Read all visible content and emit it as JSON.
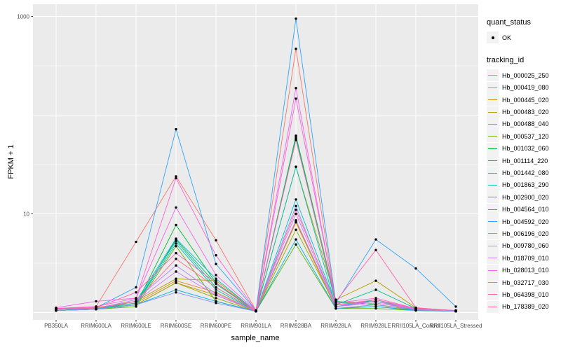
{
  "chart_data": {
    "type": "line",
    "title": "",
    "xlabel": "sample_name",
    "ylabel": "FPKM + 1",
    "y_scale": "log10",
    "ylim": [
      0.85,
      1100
    ],
    "grid": "on",
    "y_tick_labels": [
      {
        "value": 1000,
        "label": "1000"
      },
      {
        "value": 10,
        "label": "10"
      }
    ],
    "y_major_breaks": [
      1,
      10,
      100,
      1000
    ],
    "y_minor_breaks": [
      3.162,
      31.62,
      316.23
    ],
    "categories": [
      "PB350LA",
      "RRIM600LA",
      "RRIM600LE",
      "RRIM600SE",
      "RRIM600PE",
      "RRIM901LA",
      "RRIM928BA",
      "RRIM928LA",
      "RRIM928LE",
      "RRII105LA_Control",
      "RRII105LA_Stressed"
    ],
    "point_marker": {
      "shape": "circle",
      "color": "#000000",
      "meaning": "quant_status OK"
    },
    "series": [
      {
        "name": "Hb_000025_250",
        "color": "#F8766D",
        "values": [
          1.1,
          1.15,
          5.2,
          24,
          5.4,
          1.05,
          470,
          1.2,
          1.3,
          1.1,
          1.05
        ]
      },
      {
        "name": "Hb_000419_080",
        "color": "#E88526",
        "values": [
          1.05,
          1.1,
          1.25,
          2.1,
          1.6,
          1.03,
          8.4,
          1.1,
          1.2,
          1.08,
          1.03
        ]
      },
      {
        "name": "Hb_000445_020",
        "color": "#D39200",
        "values": [
          1.05,
          1.08,
          1.2,
          2.0,
          1.5,
          1.03,
          8.2,
          1.1,
          1.15,
          1.06,
          1.03
        ]
      },
      {
        "name": "Hb_000483_020",
        "color": "#B79F00",
        "values": [
          1.08,
          1.12,
          1.3,
          2.2,
          2.1,
          1.04,
          30,
          1.35,
          2.1,
          1.12,
          1.04
        ]
      },
      {
        "name": "Hb_000488_040",
        "color": "#93AA00",
        "values": [
          1.05,
          1.08,
          1.2,
          2.0,
          1.4,
          1.03,
          6.9,
          1.15,
          1.3,
          1.08,
          1.03
        ]
      },
      {
        "name": "Hb_000537_120",
        "color": "#5EB300",
        "values": [
          1.05,
          1.08,
          1.15,
          4.7,
          1.3,
          1.03,
          4.9,
          1.1,
          1.1,
          1.05,
          1.03
        ]
      },
      {
        "name": "Hb_001032_060",
        "color": "#00BA38",
        "values": [
          1.05,
          1.1,
          1.2,
          7.7,
          2.0,
          1.03,
          62,
          1.3,
          1.2,
          1.06,
          1.03
        ]
      },
      {
        "name": "Hb_001114_220",
        "color": "#00BE6C",
        "values": [
          1.05,
          1.1,
          1.2,
          5.5,
          1.95,
          1.03,
          60,
          1.25,
          1.3,
          1.06,
          1.03
        ]
      },
      {
        "name": "Hb_001442_080",
        "color": "#00C194",
        "values": [
          1.05,
          1.08,
          1.25,
          5.3,
          1.8,
          1.03,
          58,
          1.2,
          1.7,
          1.1,
          1.03
        ]
      },
      {
        "name": "Hb_001863_290",
        "color": "#00BFB4",
        "values": [
          1.05,
          1.08,
          1.2,
          5.0,
          1.7,
          1.03,
          30,
          1.15,
          1.35,
          1.06,
          1.03
        ]
      },
      {
        "name": "Hb_002900_020",
        "color": "#00BBD0",
        "values": [
          1.05,
          1.08,
          1.3,
          5.6,
          2.2,
          1.03,
          14,
          1.2,
          1.3,
          1.08,
          1.03
        ]
      },
      {
        "name": "Hb_004564_010",
        "color": "#00B1E2",
        "values": [
          1.05,
          1.08,
          1.2,
          1.7,
          1.3,
          1.03,
          5.5,
          1.1,
          1.15,
          1.05,
          1.03
        ]
      },
      {
        "name": "Hb_004592_020",
        "color": "#2FA3FF",
        "values": [
          1.1,
          1.12,
          1.8,
          72,
          3.1,
          1.05,
          950,
          1.25,
          5.5,
          2.8,
          1.15
        ]
      },
      {
        "name": "Hb_006196_020",
        "color": "#8B93FF",
        "values": [
          1.05,
          1.08,
          1.2,
          1.6,
          1.25,
          1.03,
          12,
          1.1,
          1.2,
          1.06,
          1.03
        ]
      },
      {
        "name": "Hb_009780_060",
        "color": "#B983FF",
        "values": [
          1.08,
          1.1,
          1.35,
          3.0,
          1.55,
          1.04,
          8.6,
          1.15,
          1.3,
          1.08,
          1.04
        ]
      },
      {
        "name": "Hb_018709_010",
        "color": "#D575FE",
        "values": [
          1.08,
          1.1,
          1.3,
          2.6,
          1.5,
          1.04,
          10,
          1.15,
          1.25,
          1.08,
          1.04
        ]
      },
      {
        "name": "Hb_028013_010",
        "color": "#EF67EB",
        "values": [
          1.12,
          1.3,
          1.4,
          11.6,
          2.4,
          1.05,
          188,
          1.2,
          1.3,
          1.1,
          1.05
        ]
      },
      {
        "name": "Hb_032717_030",
        "color": "#FD61D3",
        "values": [
          1.1,
          1.15,
          1.4,
          23,
          3.8,
          1.05,
          147,
          1.25,
          1.4,
          1.1,
          1.05
        ]
      },
      {
        "name": "Hb_064398_010",
        "color": "#FF62B4",
        "values": [
          1.1,
          1.12,
          1.6,
          4.0,
          2.0,
          1.04,
          56,
          1.3,
          4.3,
          1.12,
          1.04
        ]
      },
      {
        "name": "Hb_178389_020",
        "color": "#FF6A92",
        "values": [
          1.08,
          1.1,
          1.3,
          3.5,
          1.8,
          1.04,
          11,
          1.2,
          1.35,
          1.1,
          1.04
        ]
      }
    ],
    "legend_position": "right"
  },
  "legend": {
    "quant_status_title": "quant_status",
    "quant_status_value": "OK",
    "tracking_id_title": "tracking_id"
  },
  "panel": {
    "bg_color": "#EBEBEB",
    "grid_color": "#FFFFFF",
    "tick_text_color": "#4D4D4D",
    "key_bg_color": "#F2F2F2"
  }
}
